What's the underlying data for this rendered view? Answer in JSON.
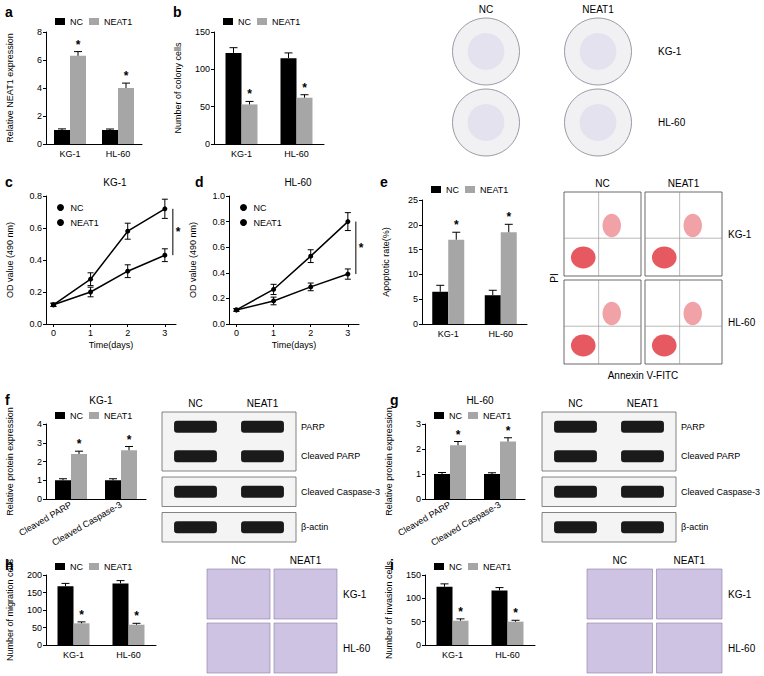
{
  "chart_data": [
    {
      "label": "a",
      "type": "bar",
      "y_label": "Relative NEAT1 expression",
      "categories": [
        "KG-1",
        "HL-60"
      ],
      "series": [
        {
          "name": "NC",
          "color": "#000000",
          "values": [
            1.0,
            1.0
          ],
          "errors": [
            0.08,
            0.07
          ]
        },
        {
          "name": "NEAT1",
          "color": "#a6a6a6",
          "values": [
            6.3,
            4.0
          ],
          "errors": [
            0.3,
            0.35
          ]
        }
      ],
      "ylim": [
        0,
        8
      ],
      "yticks": [
        0,
        2,
        4,
        6,
        8
      ],
      "annotation": "*",
      "legend": "top",
      "grid": false
    },
    {
      "label": "b",
      "type": "bar",
      "y_label": "Number of colony cells",
      "categories": [
        "KG-1",
        "HL-60"
      ],
      "series": [
        {
          "name": "NC",
          "color": "#000000",
          "values": [
            122,
            115
          ],
          "errors": [
            7,
            7
          ]
        },
        {
          "name": "NEAT1",
          "color": "#a6a6a6",
          "values": [
            53,
            62
          ],
          "errors": [
            4,
            4
          ]
        }
      ],
      "ylim": [
        0,
        150
      ],
      "yticks": [
        0,
        50,
        100,
        150
      ],
      "annotation": "*",
      "legend": "top",
      "grid": false,
      "image": {
        "type": "colony",
        "columns": [
          "NC",
          "NEAT1"
        ],
        "rows": [
          "KG-1",
          "HL-60"
        ]
      }
    },
    {
      "label": "c",
      "type": "line",
      "title": "KG-1",
      "x_label": "Time(days)",
      "y_label": "OD value (490 nm)",
      "x": [
        0,
        1,
        2,
        3
      ],
      "series": [
        {
          "name": "NC",
          "color": "#000000",
          "marker": "circle",
          "values": [
            0.12,
            0.28,
            0.58,
            0.72
          ],
          "errors": [
            0.01,
            0.04,
            0.05,
            0.06
          ]
        },
        {
          "name": "NEAT1",
          "color": "#000000",
          "marker": "circle",
          "values": [
            0.12,
            0.2,
            0.33,
            0.43
          ],
          "errors": [
            0.01,
            0.03,
            0.04,
            0.04
          ]
        }
      ],
      "xlim": [
        -0.2,
        3.3
      ],
      "xticks": [
        0,
        1,
        2,
        3
      ],
      "ylim": [
        0,
        0.8
      ],
      "yticks": [
        {
          "value": 0,
          "label": "0.0"
        },
        0.2,
        0.4,
        0.6,
        0.8
      ],
      "annotation": "*",
      "legend": "upper left",
      "grid": false
    },
    {
      "label": "d",
      "type": "line",
      "title": "HL-60",
      "x_label": "Time(days)",
      "y_label": "OD value (490 nm)",
      "x": [
        0,
        1,
        2,
        3
      ],
      "series": [
        {
          "name": "NC",
          "color": "#000000",
          "marker": "circle",
          "values": [
            0.11,
            0.27,
            0.53,
            0.8
          ],
          "errors": [
            0.01,
            0.04,
            0.05,
            0.07
          ]
        },
        {
          "name": "NEAT1",
          "color": "#000000",
          "marker": "circle",
          "values": [
            0.11,
            0.18,
            0.29,
            0.39
          ],
          "errors": [
            0.01,
            0.03,
            0.03,
            0.04
          ]
        }
      ],
      "xlim": [
        -0.2,
        3.3
      ],
      "xticks": [
        0,
        1,
        2,
        3
      ],
      "ylim": [
        0,
        1.0
      ],
      "yticks": [
        {
          "value": 0,
          "label": "0.0"
        },
        0.2,
        0.4,
        0.6,
        0.8,
        {
          "value": 1,
          "label": "1.0"
        }
      ],
      "annotation": "*",
      "legend": "upper left",
      "grid": false
    },
    {
      "label": "e",
      "type": "bar",
      "y_label": "Apoptotic rate(%)",
      "categories": [
        "KG-1",
        "HL-60"
      ],
      "series": [
        {
          "name": "NC",
          "color": "#000000",
          "values": [
            6.5,
            5.8
          ],
          "errors": [
            1.3,
            1.0
          ]
        },
        {
          "name": "NEAT1",
          "color": "#a6a6a6",
          "values": [
            17,
            18.5
          ],
          "errors": [
            1.5,
            1.6
          ]
        }
      ],
      "ylim": [
        0,
        25
      ],
      "yticks": [
        0,
        5,
        10,
        15,
        20,
        25
      ],
      "annotation": "*",
      "legend": "top",
      "grid": false,
      "image": {
        "type": "flow",
        "columns": [
          "NC",
          "NEAT1"
        ],
        "rows": [
          "KG-1",
          "HL-60"
        ],
        "x_label": "Annexin V-FITC",
        "y_label": "PI"
      }
    },
    {
      "label": "f",
      "type": "bar",
      "title": "KG-1",
      "y_label": "Relative protein expression",
      "categories": [
        "Cleaved PARP",
        "Cleaved Caspase-3"
      ],
      "series": [
        {
          "name": "NC",
          "color": "#000000",
          "values": [
            1.0,
            1.0
          ],
          "errors": [
            0.08,
            0.08
          ]
        },
        {
          "name": "NEAT1",
          "color": "#a6a6a6",
          "values": [
            2.4,
            2.6
          ],
          "errors": [
            0.15,
            0.2
          ]
        }
      ],
      "ylim": [
        0,
        4
      ],
      "yticks": [
        0,
        1,
        2,
        3,
        4
      ],
      "annotation": "*",
      "legend": "top",
      "grid": false,
      "image": {
        "type": "blot",
        "columns": [
          "NC",
          "NEAT1"
        ],
        "bands": [
          [
            "PARP",
            "Cleaved PARP"
          ],
          [
            "Cleaved Caspase-3"
          ],
          [
            "β-actin"
          ]
        ]
      }
    },
    {
      "label": "g",
      "type": "bar",
      "title": "HL-60",
      "y_label": "Relative protein expression",
      "categories": [
        "Cleaved PARP",
        "Cleaved Caspase-3"
      ],
      "series": [
        {
          "name": "NC",
          "color": "#000000",
          "values": [
            1.0,
            1.0
          ],
          "errors": [
            0.06,
            0.05
          ]
        },
        {
          "name": "NEAT1",
          "color": "#a6a6a6",
          "values": [
            2.15,
            2.3
          ],
          "errors": [
            0.15,
            0.15
          ]
        }
      ],
      "ylim": [
        0,
        3
      ],
      "yticks": [
        0,
        1,
        2,
        3
      ],
      "annotation": "*",
      "legend": "top",
      "grid": false,
      "image": {
        "type": "blot",
        "columns": [
          "NC",
          "NEAT1"
        ],
        "bands": [
          [
            "PARP",
            "Cleaved PARP"
          ],
          [
            "Cleaved Caspase-3"
          ],
          [
            "β-actin"
          ]
        ]
      }
    },
    {
      "label": "h",
      "type": "bar",
      "y_label": "Number of migration cells",
      "categories": [
        "KG-1",
        "HL-60"
      ],
      "series": [
        {
          "name": "NC",
          "color": "#000000",
          "values": [
            168,
            176
          ],
          "errors": [
            8,
            8
          ]
        },
        {
          "name": "NEAT1",
          "color": "#a6a6a6",
          "values": [
            62,
            58
          ],
          "errors": [
            4,
            4
          ]
        }
      ],
      "ylim": [
        0,
        200
      ],
      "yticks": [
        0,
        50,
        100,
        150,
        200
      ],
      "annotation": "*",
      "legend": "top",
      "grid": false,
      "image": {
        "type": "transwell",
        "columns": [
          "NC",
          "NEAT1"
        ],
        "rows": [
          "KG-1",
          "HL-60"
        ]
      }
    },
    {
      "label": "i",
      "type": "bar",
      "y_label": "Number of invasion cells",
      "categories": [
        "KG-1",
        "HL-60"
      ],
      "series": [
        {
          "name": "NC",
          "color": "#000000",
          "values": [
            125,
            117
          ],
          "errors": [
            6,
            6
          ]
        },
        {
          "name": "NEAT1",
          "color": "#a6a6a6",
          "values": [
            52,
            50
          ],
          "errors": [
            4,
            3
          ]
        }
      ],
      "ylim": [
        0,
        150
      ],
      "yticks": [
        0,
        50,
        100,
        150
      ],
      "annotation": "*",
      "legend": "top",
      "grid": false,
      "image": {
        "type": "transwell",
        "columns": [
          "NC",
          "NEAT1"
        ],
        "rows": [
          "KG-1",
          "HL-60"
        ]
      }
    }
  ]
}
